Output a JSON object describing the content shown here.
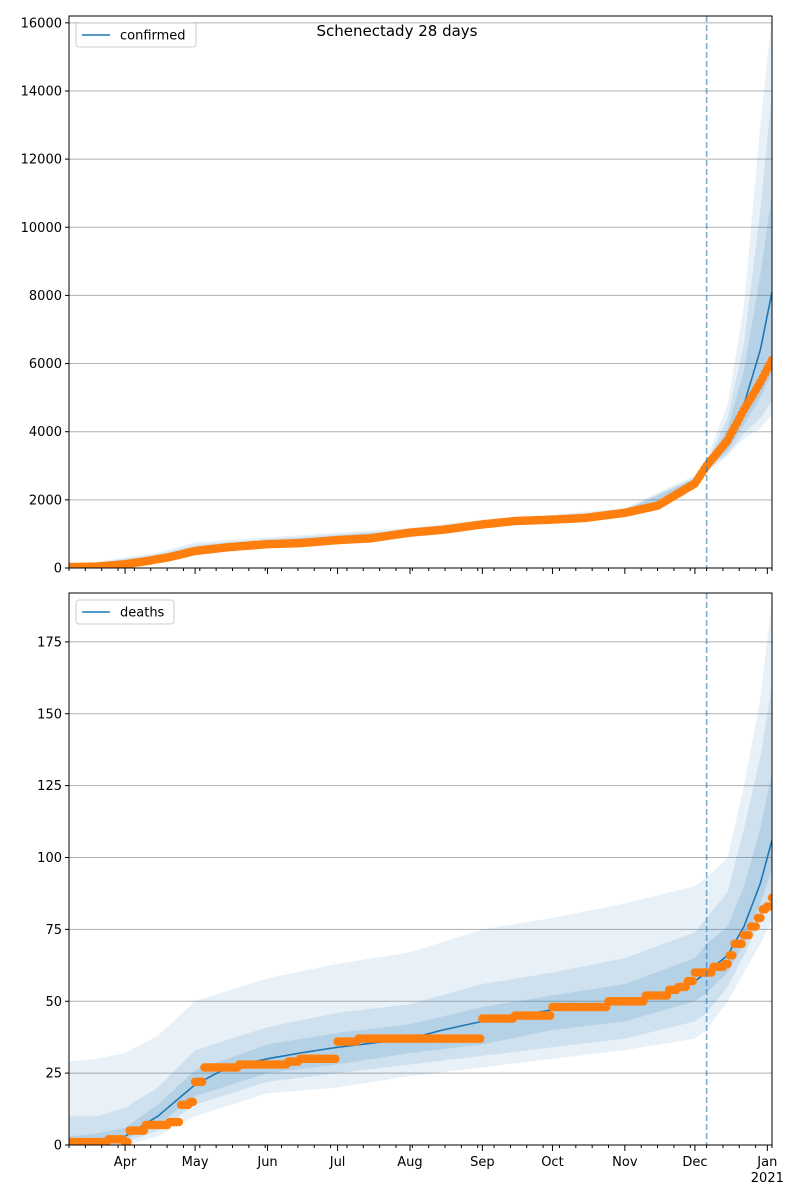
{
  "figure": {
    "title": "Schenectady 28 days"
  },
  "colors": {
    "model_line": "#1f77b4",
    "observed_points": "#ff7f0e",
    "band": "#1f77b4",
    "grid": "#b0b0b0",
    "forecast_marker": "#1f77b4"
  },
  "shared_x_axis": {
    "type": "date",
    "range": [
      "2020-03-08",
      "2021-01-03"
    ],
    "tick_labels": [
      "Apr",
      "May",
      "Jun",
      "Jul",
      "Aug",
      "Sep",
      "Oct",
      "Nov",
      "Dec",
      "Jan",
      "2021"
    ],
    "forecast_start": "2020-12-06"
  },
  "chart_data": [
    {
      "type": "line",
      "title": "Schenectady 28 days",
      "legend": {
        "label": "confirmed",
        "placement": "top-left"
      },
      "ylim": [
        0,
        16200
      ],
      "yticks": [
        0,
        2000,
        4000,
        6000,
        8000,
        10000,
        12000,
        14000,
        16000
      ],
      "grid": "horizontal",
      "forecast_start": "2020-12-06",
      "series": [
        {
          "name": "confirmed",
          "kind": "model-line",
          "x": [
            "2020-03-08",
            "2020-03-20",
            "2020-04-01",
            "2020-04-15",
            "2020-05-01",
            "2020-06-01",
            "2020-07-01",
            "2020-08-01",
            "2020-09-01",
            "2020-10-01",
            "2020-11-01",
            "2020-11-15",
            "2020-12-01",
            "2020-12-06",
            "2020-12-15",
            "2020-12-22",
            "2020-12-29",
            "2021-01-03"
          ],
          "y": [
            20,
            30,
            100,
            300,
            520,
            700,
            820,
            1040,
            1300,
            1450,
            1620,
            1850,
            2520,
            2950,
            3650,
            4800,
            6400,
            8100
          ]
        },
        {
          "kind": "observed",
          "x": [
            "2020-03-08",
            "2020-03-20",
            "2020-04-01",
            "2020-04-10",
            "2020-04-20",
            "2020-05-01",
            "2020-05-15",
            "2020-06-01",
            "2020-06-15",
            "2020-07-01",
            "2020-07-15",
            "2020-08-01",
            "2020-08-15",
            "2020-09-01",
            "2020-09-15",
            "2020-10-01",
            "2020-10-15",
            "2020-11-01",
            "2020-11-15",
            "2020-12-01",
            "2020-12-06",
            "2020-12-15",
            "2020-12-22",
            "2020-12-29",
            "2021-01-01",
            "2021-01-03"
          ],
          "y": [
            30,
            40,
            110,
            200,
            320,
            500,
            610,
            700,
            730,
            820,
            870,
            1040,
            1120,
            1280,
            1380,
            1420,
            1470,
            1620,
            1830,
            2480,
            3000,
            3750,
            4650,
            5450,
            5850,
            6100
          ]
        }
      ],
      "bands": [
        {
          "x": [
            "2020-03-08",
            "2020-04-15",
            "2020-05-01",
            "2020-06-01",
            "2020-08-01",
            "2020-09-01",
            "2020-10-01",
            "2020-11-01",
            "2020-12-01",
            "2020-12-06",
            "2020-12-15",
            "2020-12-22",
            "2020-12-29",
            "2021-01-03"
          ],
          "lower": [
            10,
            200,
            400,
            600,
            950,
            1200,
            1350,
            1500,
            2350,
            2800,
            3300,
            3800,
            4100,
            4500
          ],
          "upper": [
            60,
            450,
            750,
            900,
            1180,
            1420,
            1560,
            1760,
            2720,
            3200,
            4800,
            7700,
            13000,
            16200
          ]
        },
        {
          "x": [
            "2020-03-08",
            "2020-04-15",
            "2020-05-01",
            "2020-06-01",
            "2020-08-01",
            "2020-09-01",
            "2020-10-01",
            "2020-11-01",
            "2020-12-01",
            "2020-12-06",
            "2020-12-15",
            "2020-12-22",
            "2020-12-29",
            "2021-01-03"
          ],
          "lower": [
            10,
            240,
            450,
            640,
            980,
            1240,
            1390,
            1550,
            2400,
            2850,
            3350,
            3950,
            4400,
            4900
          ],
          "upper": [
            50,
            400,
            680,
            850,
            1130,
            1380,
            1520,
            1720,
            2660,
            3100,
            4400,
            6600,
            10500,
            14000
          ]
        },
        {
          "x": [
            "2020-03-08",
            "2020-04-15",
            "2020-05-01",
            "2020-06-01",
            "2020-08-01",
            "2020-09-01",
            "2020-10-01",
            "2020-11-01",
            "2020-12-01",
            "2020-12-06",
            "2020-12-15",
            "2020-12-22",
            "2020-12-29",
            "2021-01-03"
          ],
          "lower": [
            15,
            270,
            480,
            660,
            1000,
            1260,
            1410,
            1580,
            2440,
            2900,
            3450,
            4200,
            5000,
            5700
          ],
          "upper": [
            40,
            360,
            620,
            800,
            1100,
            1350,
            1500,
            1690,
            2620,
            3050,
            4100,
            5800,
            8600,
            11000
          ]
        }
      ]
    },
    {
      "type": "line",
      "legend": {
        "label": "deaths",
        "placement": "top-left"
      },
      "ylim": [
        0,
        192
      ],
      "yticks": [
        0,
        25,
        50,
        75,
        100,
        125,
        150,
        175
      ],
      "grid": "horizontal",
      "forecast_start": "2020-12-06",
      "series": [
        {
          "name": "deaths",
          "kind": "model-line",
          "x": [
            "2020-03-08",
            "2020-03-20",
            "2020-04-01",
            "2020-04-15",
            "2020-05-01",
            "2020-05-15",
            "2020-06-01",
            "2020-06-15",
            "2020-07-01",
            "2020-08-01",
            "2020-08-15",
            "2020-09-01",
            "2020-10-01",
            "2020-11-01",
            "2020-11-15",
            "2020-12-01",
            "2020-12-06",
            "2020-12-15",
            "2020-12-22",
            "2020-12-29",
            "2021-01-03"
          ],
          "y": [
            0,
            2,
            3,
            10,
            21,
            27,
            30,
            32,
            34,
            37,
            40,
            43,
            47,
            50,
            52,
            57,
            60,
            66,
            76,
            91,
            106
          ]
        },
        {
          "kind": "observed",
          "x": [
            "2020-03-08",
            "2020-03-25",
            "2020-04-01",
            "2020-04-03",
            "2020-04-10",
            "2020-04-15",
            "2020-04-20",
            "2020-04-25",
            "2020-04-29",
            "2020-05-01",
            "2020-05-05",
            "2020-05-20",
            "2020-06-01",
            "2020-06-10",
            "2020-06-15",
            "2020-07-01",
            "2020-07-10",
            "2020-08-01",
            "2020-08-24",
            "2020-08-26",
            "2020-09-01",
            "2020-09-15",
            "2020-09-17",
            "2020-10-01",
            "2020-10-20",
            "2020-10-25",
            "2020-11-01",
            "2020-11-05",
            "2020-11-10",
            "2020-11-14",
            "2020-11-20",
            "2020-11-24",
            "2020-11-28",
            "2020-12-01",
            "2020-12-06",
            "2020-12-09",
            "2020-12-14",
            "2020-12-16",
            "2020-12-18",
            "2020-12-22",
            "2020-12-25",
            "2020-12-28",
            "2020-12-30",
            "2021-01-01",
            "2021-01-03"
          ],
          "y": [
            1,
            2,
            1,
            5,
            7,
            7,
            8,
            14,
            15,
            22,
            27,
            28,
            28,
            29,
            30,
            36,
            37,
            37,
            37,
            37,
            44,
            45,
            45,
            48,
            48,
            50,
            50,
            50,
            52,
            52,
            54,
            55,
            57,
            60,
            60,
            62,
            63,
            66,
            70,
            73,
            76,
            79,
            82,
            83,
            86
          ]
        }
      ],
      "bands": [
        {
          "x": [
            "2020-03-08",
            "2020-03-20",
            "2020-04-01",
            "2020-04-15",
            "2020-05-01",
            "2020-06-01",
            "2020-07-01",
            "2020-08-01",
            "2020-09-01",
            "2020-10-01",
            "2020-11-01",
            "2020-12-01",
            "2020-12-06",
            "2020-12-15",
            "2020-12-22",
            "2020-12-29",
            "2021-01-03"
          ],
          "lower": [
            0,
            0,
            0,
            3,
            10,
            18,
            20,
            24,
            27,
            30,
            33,
            37,
            40,
            50,
            60,
            70,
            78
          ],
          "upper": [
            29,
            30,
            32,
            38,
            50,
            58,
            63,
            67,
            75,
            79,
            84,
            90,
            93,
            100,
            125,
            155,
            190
          ]
        },
        {
          "x": [
            "2020-03-08",
            "2020-03-20",
            "2020-04-01",
            "2020-04-15",
            "2020-05-01",
            "2020-06-01",
            "2020-07-01",
            "2020-08-01",
            "2020-09-01",
            "2020-10-01",
            "2020-11-01",
            "2020-12-01",
            "2020-12-06",
            "2020-12-15",
            "2020-12-22",
            "2020-12-29",
            "2021-01-03"
          ],
          "lower": [
            0,
            0,
            1,
            5,
            14,
            22,
            25,
            28,
            31,
            34,
            37,
            43,
            46,
            55,
            66,
            78,
            88
          ],
          "upper": [
            10,
            10,
            13,
            20,
            33,
            41,
            46,
            49,
            56,
            60,
            65,
            74,
            79,
            88,
            110,
            135,
            160
          ]
        },
        {
          "x": [
            "2020-03-08",
            "2020-03-20",
            "2020-04-01",
            "2020-04-15",
            "2020-05-01",
            "2020-06-01",
            "2020-07-01",
            "2020-08-01",
            "2020-09-01",
            "2020-10-01",
            "2020-11-01",
            "2020-12-01",
            "2020-12-06",
            "2020-12-15",
            "2020-12-22",
            "2020-12-29",
            "2021-01-03"
          ],
          "lower": [
            0,
            1,
            2,
            7,
            17,
            25,
            28,
            32,
            35,
            40,
            43,
            50,
            53,
            60,
            70,
            84,
            96
          ],
          "upper": [
            3,
            4,
            6,
            14,
            26,
            35,
            39,
            42,
            48,
            52,
            56,
            65,
            70,
            76,
            90,
            110,
            130
          ]
        }
      ]
    }
  ]
}
